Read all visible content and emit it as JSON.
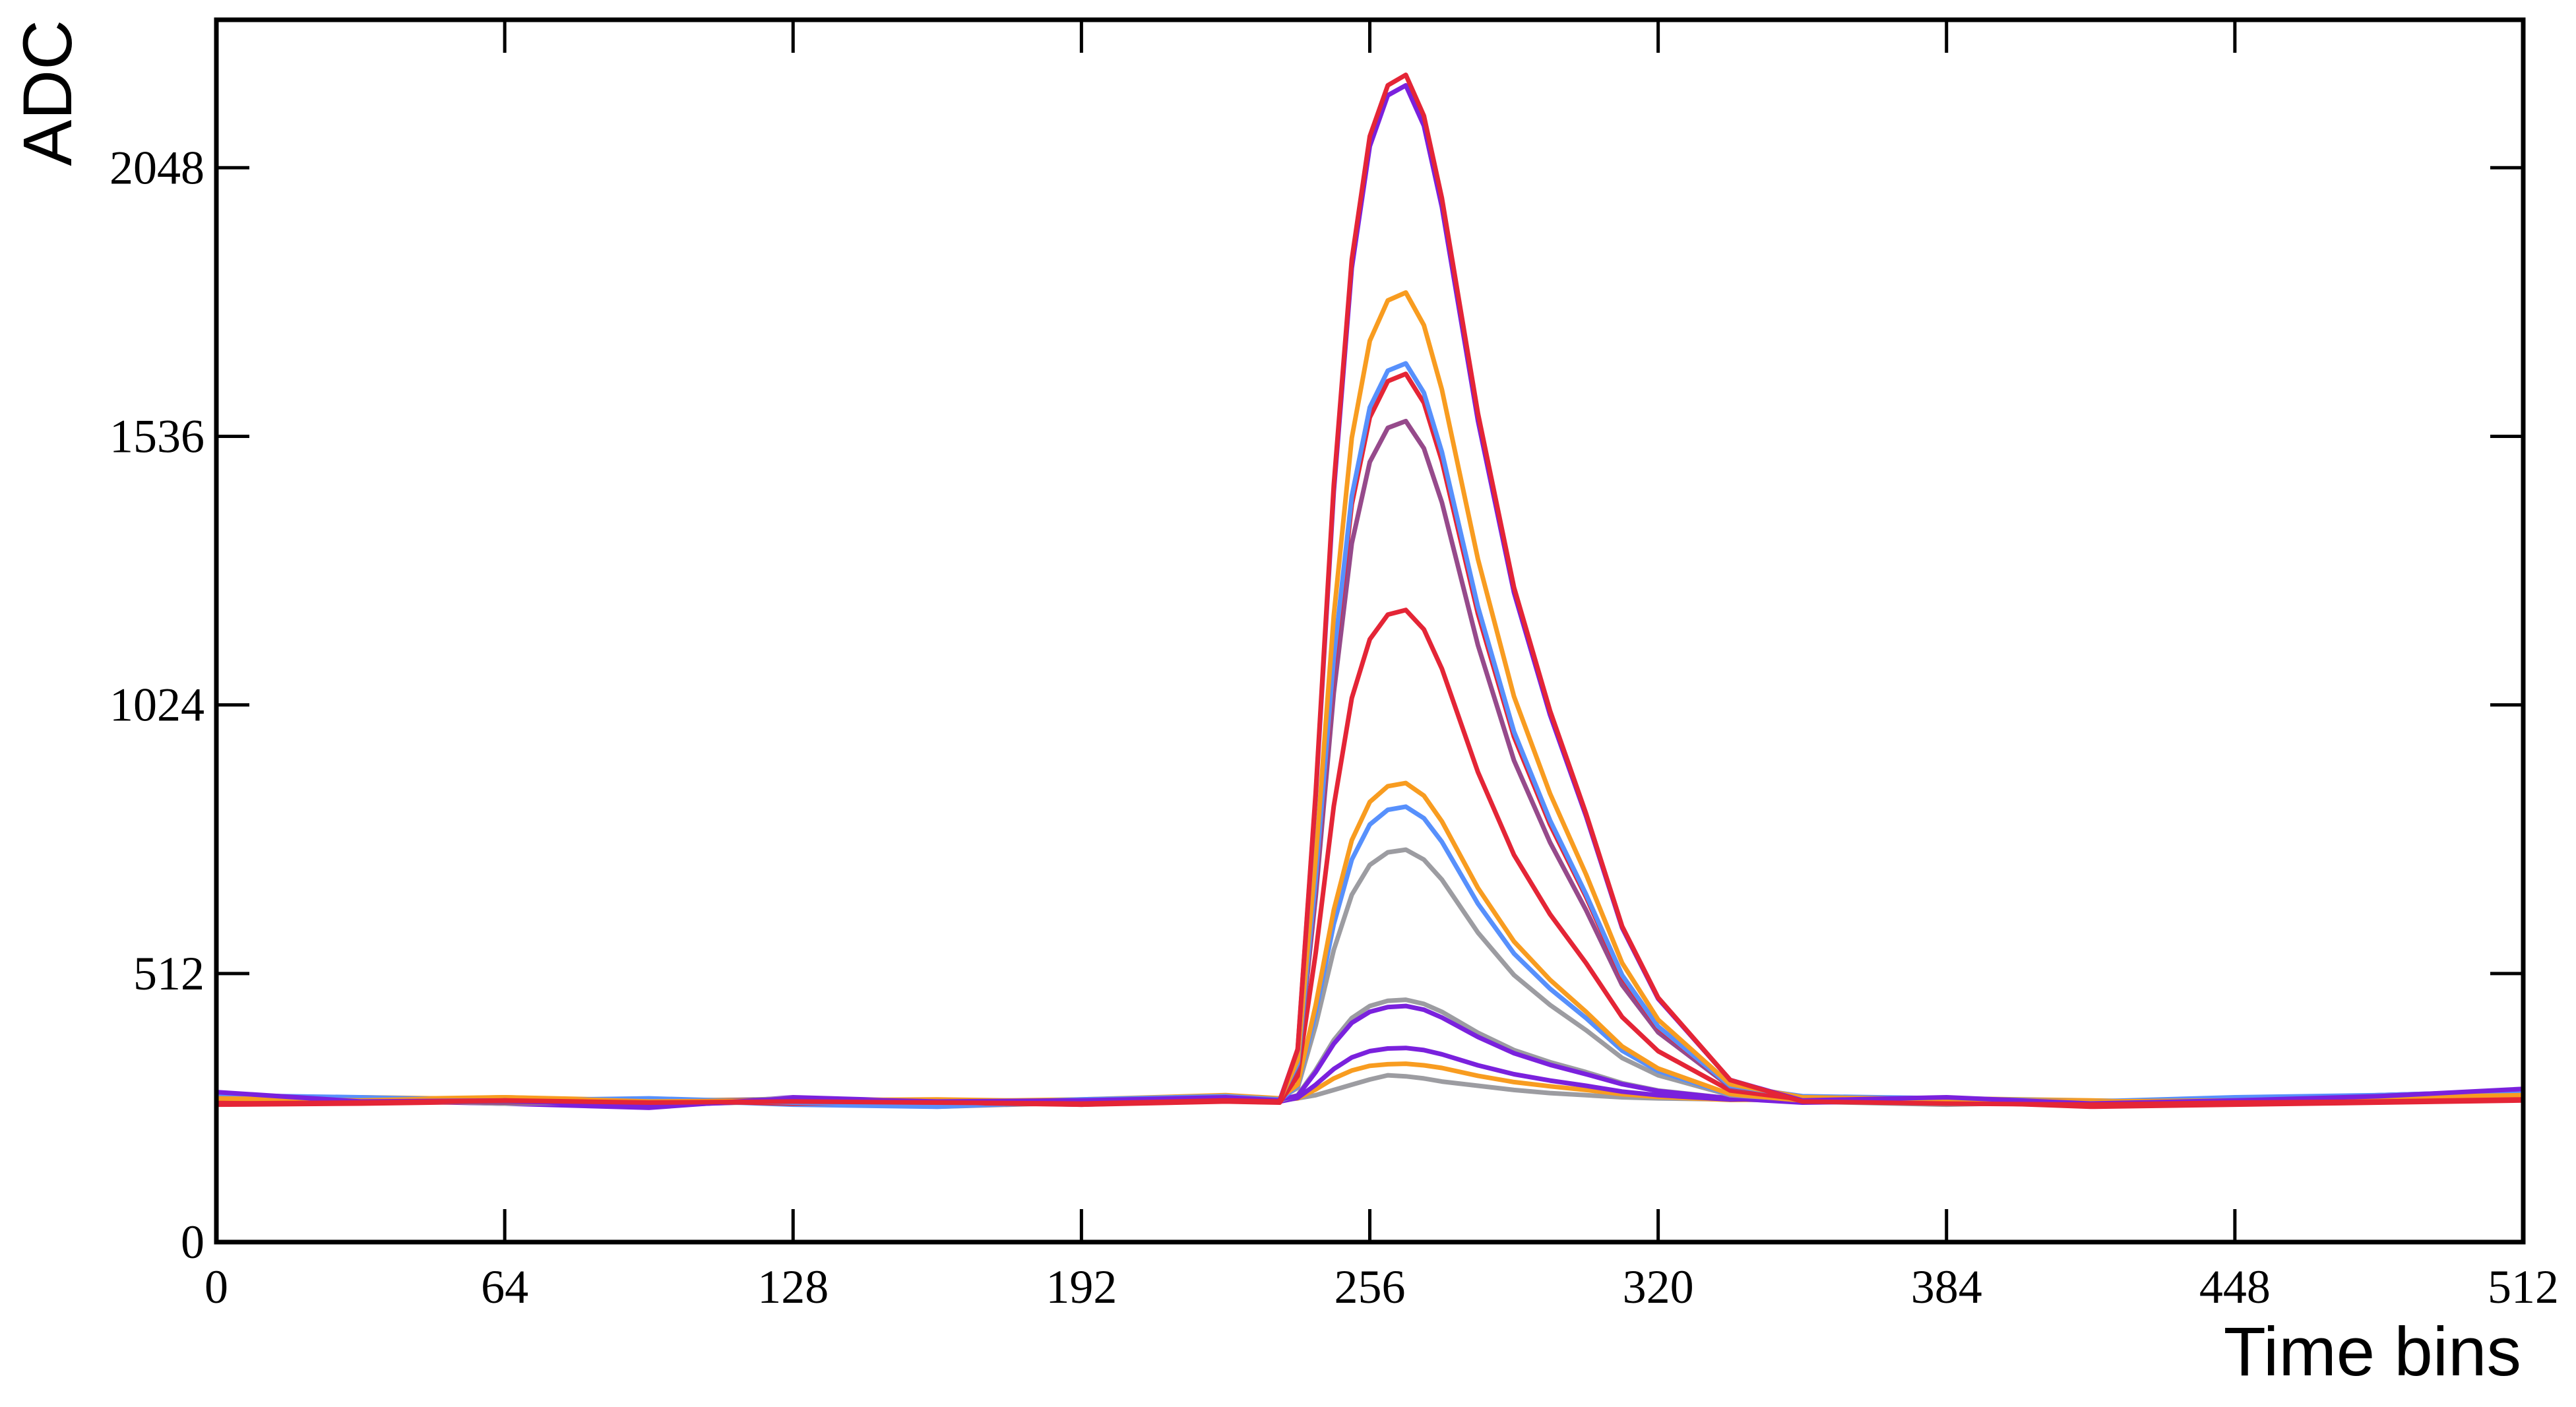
{
  "chart_data": {
    "type": "line",
    "x_label": "Time bins",
    "y_label": "ADC",
    "x": [
      0,
      32,
      64,
      96,
      128,
      160,
      192,
      224,
      236,
      240,
      244,
      248,
      252,
      256,
      260,
      264,
      268,
      272,
      280,
      288,
      296,
      304,
      312,
      320,
      336,
      352,
      384,
      416,
      448,
      480,
      512
    ],
    "xlim": [
      0,
      512
    ],
    "xticks": [
      0,
      64,
      128,
      192,
      256,
      320,
      384,
      448,
      512
    ],
    "ylim": [
      0,
      2330
    ],
    "yticks": [
      0,
      512,
      1024,
      1536,
      2048
    ],
    "grid": false,
    "series": [
      {
        "color": "#9c9ca1",
        "values": [
          272,
          266,
          270,
          262,
          268,
          258,
          266,
          272,
          270,
          274,
          280,
          290,
          300,
          310,
          318,
          316,
          312,
          306,
          298,
          290,
          284,
          280,
          276,
          274,
          272,
          270,
          264,
          266,
          268,
          272,
          276
        ]
      },
      {
        "color": "#f89c20",
        "values": [
          278,
          272,
          276,
          270,
          272,
          266,
          270,
          278,
          272,
          274,
          291,
          312,
          327,
          336,
          339,
          340,
          337,
          332,
          317,
          305,
          297,
          290,
          282,
          277,
          271,
          272,
          270,
          264,
          270,
          278,
          284
        ]
      },
      {
        "color": "#7a21dd",
        "values": [
          284,
          270,
          264,
          256,
          276,
          268,
          262,
          270,
          268,
          275,
          300,
          330,
          352,
          364,
          369,
          370,
          366,
          358,
          337,
          320,
          308,
          298,
          287,
          280,
          272,
          274,
          268,
          262,
          266,
          276,
          290
        ]
      },
      {
        "color": "#9c9ca1",
        "values": [
          276,
          268,
          270,
          266,
          274,
          262,
          270,
          274,
          270,
          280,
          328,
          385,
          427,
          450,
          460,
          462,
          454,
          439,
          399,
          366,
          343,
          324,
          303,
          289,
          274,
          268,
          262,
          268,
          274,
          270,
          282
        ]
      },
      {
        "color": "#7a21dd",
        "values": [
          280,
          274,
          268,
          260,
          270,
          266,
          268,
          276,
          272,
          279,
          324,
          378,
          418,
          439,
          448,
          450,
          443,
          428,
          391,
          360,
          338,
          320,
          301,
          288,
          274,
          266,
          270,
          262,
          270,
          280,
          288
        ]
      },
      {
        "color": "#9c9ca1",
        "values": [
          270,
          272,
          264,
          268,
          266,
          270,
          264,
          272,
          274,
          294,
          413,
          557,
          662,
          719,
          743,
          748,
          729,
          691,
          590,
          509,
          452,
          404,
          351,
          318,
          280,
          272,
          266,
          268,
          264,
          274,
          280
        ]
      },
      {
        "color": "#5790fc",
        "values": [
          274,
          266,
          270,
          272,
          262,
          258,
          268,
          276,
          270,
          298,
          438,
          606,
          729,
          796,
          824,
          830,
          808,
          763,
          645,
          550,
          483,
          427,
          365,
          326,
          281,
          276,
          270,
          264,
          270,
          272,
          286
        ]
      },
      {
        "color": "#f89c20",
        "values": [
          268,
          276,
          272,
          266,
          270,
          268,
          272,
          280,
          274,
          300,
          452,
          633,
          766,
          839,
          869,
          875,
          851,
          802,
          675,
          573,
          500,
          439,
          373,
          331,
          282,
          270,
          274,
          270,
          266,
          276,
          278
        ]
      },
      {
        "color": "#e42536",
        "values": [
          262,
          264,
          268,
          270,
          264,
          266,
          262,
          268,
          266,
          317,
          551,
          831,
          1037,
          1149,
          1196,
          1205,
          1168,
          1093,
          896,
          738,
          625,
          532,
          429,
          364,
          289,
          272,
          268,
          258,
          262,
          266,
          270
        ]
      },
      {
        "color": "#964a8b",
        "values": [
          276,
          270,
          266,
          268,
          272,
          264,
          270,
          274,
          272,
          335,
          659,
          1047,
          1332,
          1487,
          1552,
          1565,
          1513,
          1410,
          1138,
          918,
          762,
          633,
          490,
          400,
          296,
          274,
          270,
          266,
          272,
          278,
          284
        ]
      },
      {
        "color": "#e42536",
        "values": [
          266,
          268,
          272,
          264,
          268,
          270,
          266,
          270,
          268,
          339,
          686,
          1101,
          1406,
          1572,
          1641,
          1655,
          1600,
          1489,
          1198,
          963,
          796,
          658,
          505,
          409,
          298,
          270,
          272,
          262,
          268,
          270,
          274
        ]
      },
      {
        "color": "#5790fc",
        "values": [
          280,
          276,
          270,
          274,
          266,
          262,
          272,
          278,
          272,
          340,
          692,
          1113,
          1422,
          1591,
          1661,
          1675,
          1619,
          1506,
          1211,
          973,
          804,
          663,
          509,
          411,
          298,
          278,
          274,
          268,
          276,
          280,
          288
        ]
      },
      {
        "color": "#f89c20",
        "values": [
          274,
          270,
          276,
          268,
          270,
          272,
          268,
          276,
          270,
          347,
          732,
          1194,
          1533,
          1718,
          1795,
          1810,
          1748,
          1625,
          1302,
          1040,
          855,
          701,
          532,
          424,
          301,
          276,
          272,
          268,
          270,
          276,
          280
        ]
      },
      {
        "color": "#7a21dd",
        "values": [
          286,
          268,
          270,
          258,
          274,
          268,
          270,
          276,
          270,
          367,
          851,
          1431,
          1857,
          2089,
          2186,
          2205,
          2128,
          1973,
          1566,
          1238,
          1005,
          812,
          599,
          464,
          309,
          270,
          276,
          264,
          270,
          278,
          292
        ]
      },
      {
        "color": "#e42536",
        "values": [
          264,
          266,
          270,
          266,
          268,
          266,
          264,
          270,
          268,
          368,
          857,
          1443,
          1873,
          2108,
          2205,
          2225,
          2147,
          1990,
          1580,
          1248,
          1013,
          817,
          602,
          466,
          309,
          268,
          264,
          262,
          266,
          268,
          272
        ]
      }
    ]
  }
}
